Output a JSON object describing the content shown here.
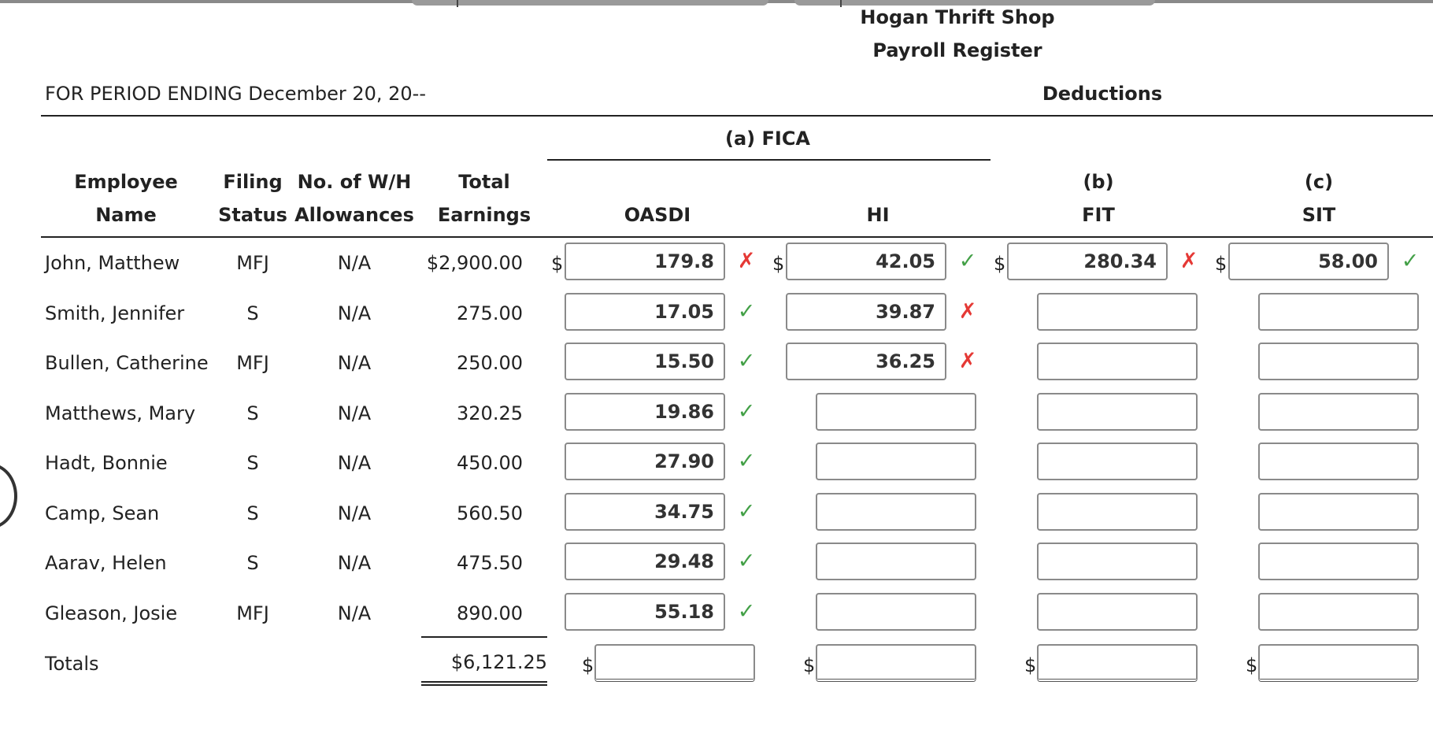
{
  "header": {
    "company": "Hogan Thrift Shop",
    "register": "Payroll Register",
    "period": "FOR PERIOD ENDING December 20, 20--",
    "deductions": "Deductions",
    "fica": "(a) FICA"
  },
  "columns": {
    "employee_1": "Employee",
    "employee_2": "Name",
    "filing_1": "Filing",
    "filing_2": "Status",
    "allow_1": "No. of W/H",
    "allow_2": "Allowances",
    "earn_1": "Total",
    "earn_2": "Earnings",
    "oasdi": "OASDI",
    "hi": "HI",
    "fit_1": "(b)",
    "fit_2": "FIT",
    "sit_1": "(c)",
    "sit_2": "SIT"
  },
  "currency": "$",
  "rows": [
    {
      "name": "John, Matthew",
      "status": "MFJ",
      "allowances": "N/A",
      "earnings": "$2,900.00",
      "oasdi": "179.8",
      "oasdi_mark": "cross",
      "hi": "42.05",
      "hi_mark": "check",
      "fit": "280.34",
      "fit_mark": "cross",
      "sit": "58.00",
      "sit_mark": "check"
    },
    {
      "name": "Smith, Jennifer",
      "status": "S",
      "allowances": "N/A",
      "earnings": "275.00",
      "oasdi": "17.05",
      "oasdi_mark": "check",
      "hi": "39.87",
      "hi_mark": "cross",
      "fit": "",
      "sit": ""
    },
    {
      "name": "Bullen, Catherine",
      "status": "MFJ",
      "allowances": "N/A",
      "earnings": "250.00",
      "oasdi": "15.50",
      "oasdi_mark": "check",
      "hi": "36.25",
      "hi_mark": "cross",
      "fit": "",
      "sit": ""
    },
    {
      "name": "Matthews, Mary",
      "status": "S",
      "allowances": "N/A",
      "earnings": "320.25",
      "oasdi": "19.86",
      "oasdi_mark": "check",
      "hi": "",
      "fit": "",
      "sit": ""
    },
    {
      "name": "Hadt, Bonnie",
      "status": "S",
      "allowances": "N/A",
      "earnings": "450.00",
      "oasdi": "27.90",
      "oasdi_mark": "check",
      "hi": "",
      "fit": "",
      "sit": ""
    },
    {
      "name": "Camp, Sean",
      "status": "S",
      "allowances": "N/A",
      "earnings": "560.50",
      "oasdi": "34.75",
      "oasdi_mark": "check",
      "hi": "",
      "fit": "",
      "sit": ""
    },
    {
      "name": "Aarav, Helen",
      "status": "S",
      "allowances": "N/A",
      "earnings": "475.50",
      "oasdi": "29.48",
      "oasdi_mark": "check",
      "hi": "",
      "fit": "",
      "sit": ""
    },
    {
      "name": "Gleason, Josie",
      "status": "MFJ",
      "allowances": "N/A",
      "earnings": "890.00",
      "oasdi": "55.18",
      "oasdi_mark": "check",
      "hi": "",
      "fit": "",
      "sit": ""
    }
  ],
  "totals": {
    "label": "Totals",
    "earnings": "$6,121.25",
    "oasdi": "",
    "hi": "",
    "fit": "",
    "sit": ""
  },
  "marks": {
    "check": "✓",
    "cross": "✗"
  },
  "colors": {
    "check": "#43a047",
    "cross": "#e53935"
  }
}
